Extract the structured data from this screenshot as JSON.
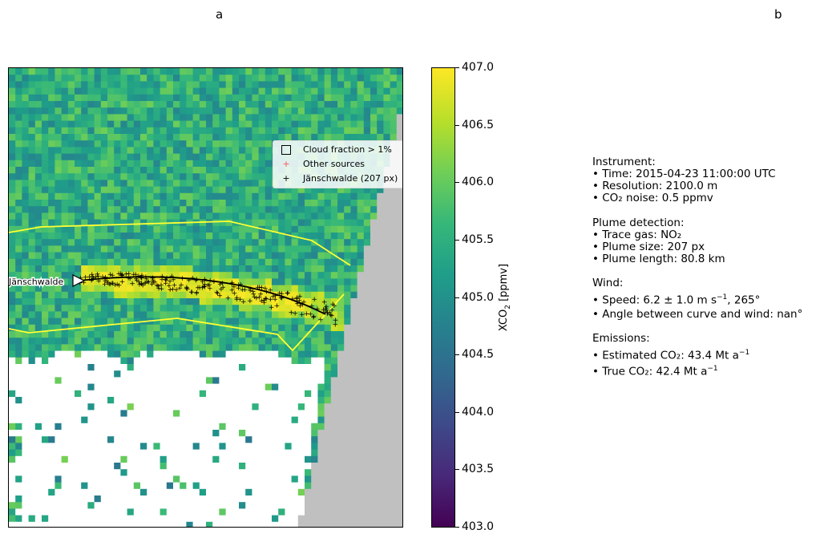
{
  "panels": {
    "a": "a",
    "b": "b"
  },
  "map": {
    "source_label": "Jänschwalde",
    "colors": {
      "cloud": "#ffffff",
      "no_data": "#c0c0c0",
      "plume_outline": "#ffff33",
      "plume_marker": "#000000"
    }
  },
  "legend": {
    "cloud": "Cloud fraction > 1%",
    "other": "Other sources",
    "plume": "Jänschwalde (207 px)"
  },
  "colorbar": {
    "label_prefix": "XCO",
    "label_sub": "2",
    "label_suffix": " [ppmv]",
    "ticks": [
      "407.0",
      "406.5",
      "406.0",
      "405.5",
      "405.0",
      "404.5",
      "404.0",
      "403.5",
      "403.0"
    ]
  },
  "info": {
    "instrument_title": "Instrument:",
    "time": "• Time: 2015-04-23 11:00:00 UTC",
    "resolution": "• Resolution: 2100.0 m",
    "noise": "• CO₂ noise: 0.5 ppmv",
    "detection_title": "Plume detection:",
    "trace_gas": "• Trace gas: NO₂",
    "plume_size": "• Plume size: 207 px",
    "plume_length": "• Plume length: 80.8 km",
    "wind_title": "Wind:",
    "speed_prefix": "• Speed: 6.2 ± 1.0 m s",
    "speed_exp": "−1",
    "speed_suffix": ", 265°",
    "angle": "• Angle between curve and wind: nan°",
    "emissions_title": "Emissions:",
    "est_prefix": "• Estimated CO₂: 43.4 Mt a",
    "est_exp": "−1",
    "true_prefix": "• True CO₂: 42.4 Mt a",
    "true_exp": "−1"
  },
  "chart_data": {
    "type": "heatmap",
    "colorbar_range": [
      403.0,
      407.0
    ],
    "colormap": "viridis",
    "series": [
      {
        "name": "Cloud fraction > 1%"
      },
      {
        "name": "Other sources"
      },
      {
        "name": "Jänschwalde (207 px)"
      }
    ]
  }
}
